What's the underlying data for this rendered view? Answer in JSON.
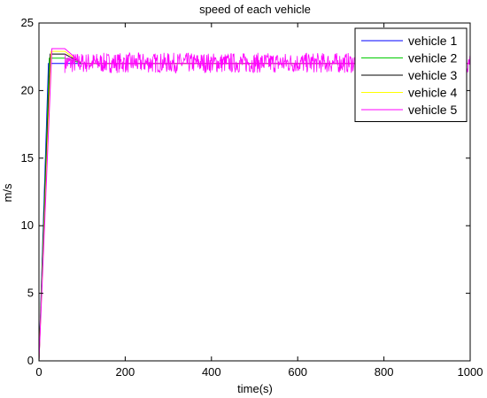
{
  "chart_data": {
    "type": "line",
    "title": "speed of each vehicle",
    "xlabel": "time(s)",
    "ylabel": "m/s",
    "xlim": [
      0,
      1000
    ],
    "ylim": [
      0,
      25
    ],
    "xticks": [
      0,
      200,
      400,
      600,
      800,
      1000
    ],
    "yticks": [
      0,
      5,
      10,
      15,
      20,
      25
    ],
    "grid": false,
    "legend_position": "top-right",
    "series": [
      {
        "name": "vehicle 1",
        "color": "#0000ff",
        "x": [
          0,
          22,
          60,
          100,
          1000
        ],
        "y": [
          0,
          22.0,
          22.0,
          22.0,
          22.0
        ]
      },
      {
        "name": "vehicle 2",
        "color": "#00cc00",
        "x": [
          0,
          24,
          60,
          100,
          1000
        ],
        "y": [
          0,
          22.4,
          22.4,
          22.0,
          22.0
        ]
      },
      {
        "name": "vehicle 3",
        "color": "#000000",
        "x": [
          0,
          26,
          60,
          100,
          1000
        ],
        "y": [
          0,
          22.7,
          22.7,
          22.0,
          22.0
        ]
      },
      {
        "name": "vehicle 4",
        "color": "#ffff00",
        "x": [
          0,
          28,
          60,
          100,
          1000
        ],
        "y": [
          0,
          22.9,
          22.9,
          22.0,
          22.0
        ]
      },
      {
        "name": "vehicle 5",
        "color": "#ff00ff",
        "x": [
          0,
          30,
          60,
          100,
          1000
        ],
        "y": [
          0,
          23.1,
          23.1,
          22.0,
          22.0
        ],
        "noise_band": {
          "x_range": [
            60,
            1000
          ],
          "y_range": [
            21.3,
            22.8
          ]
        }
      }
    ]
  }
}
